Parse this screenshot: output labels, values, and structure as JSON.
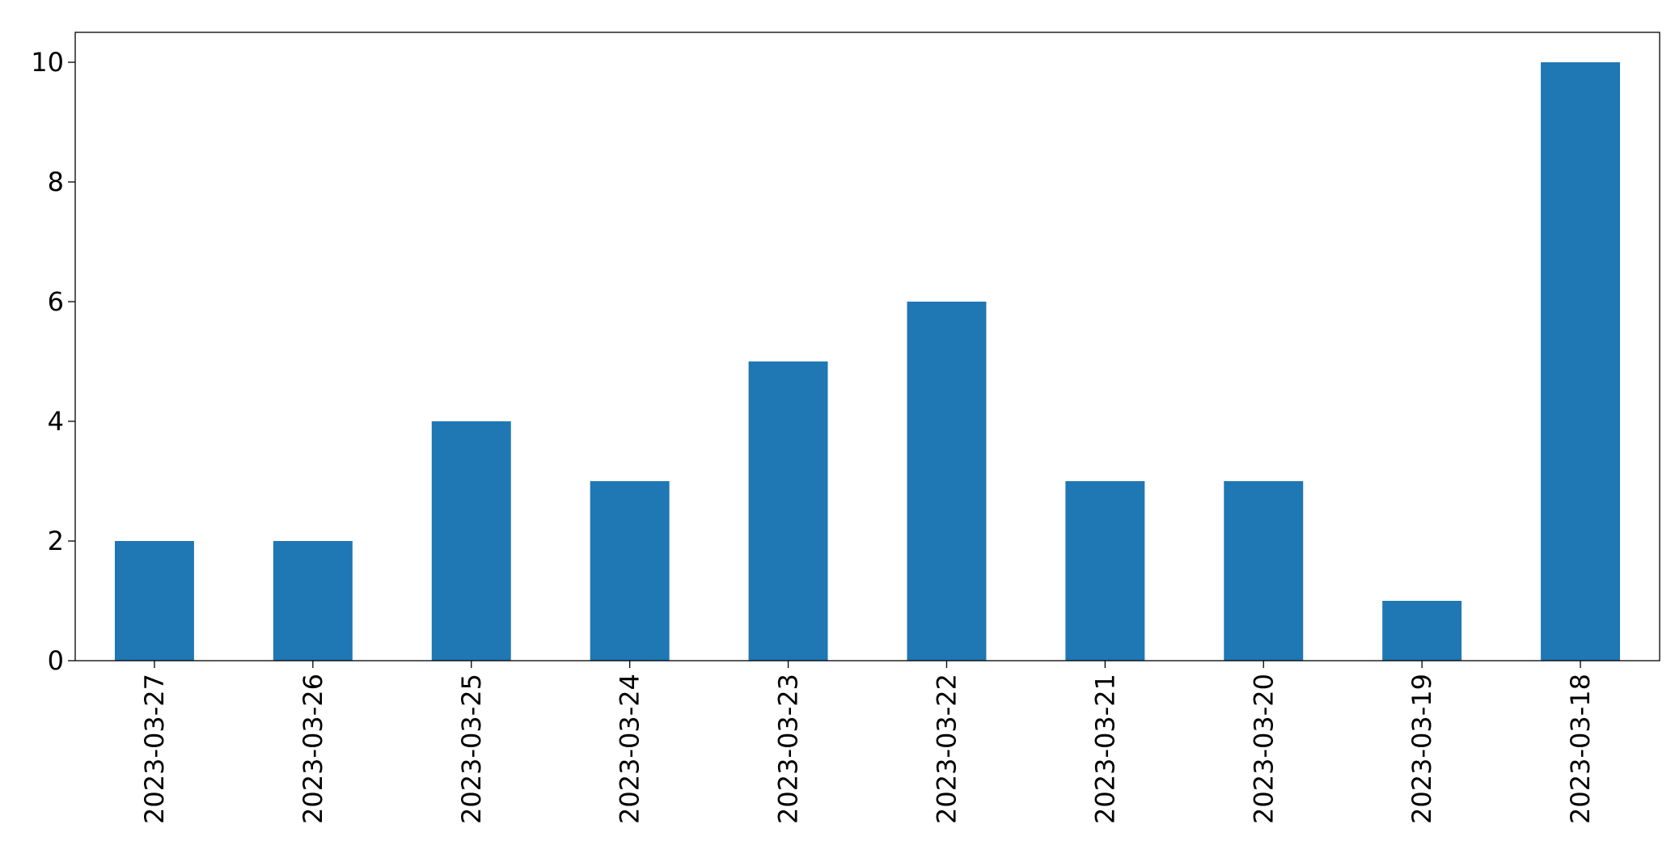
{
  "chart_data": {
    "type": "bar",
    "categories": [
      "2023-03-27",
      "2023-03-26",
      "2023-03-25",
      "2023-03-24",
      "2023-03-23",
      "2023-03-22",
      "2023-03-21",
      "2023-03-20",
      "2023-03-19",
      "2023-03-18"
    ],
    "values": [
      2,
      2,
      4,
      3,
      5,
      6,
      3,
      3,
      1,
      10
    ],
    "color": "#1f77b4",
    "ylim": [
      0,
      10.5
    ],
    "yticks": [
      0,
      2,
      4,
      6,
      8,
      10
    ],
    "grid": false
  }
}
